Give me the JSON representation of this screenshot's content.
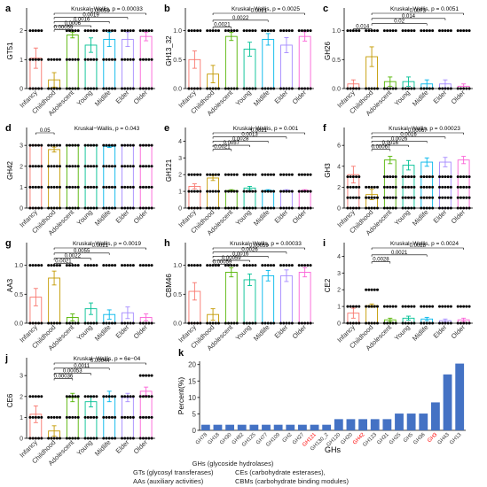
{
  "groups": [
    "Infancy",
    "Childhood",
    "Adolescent",
    "Young",
    "Midlife",
    "Elder",
    "Older"
  ],
  "group_colors": {
    "Infancy": "#f8766d",
    "Childhood": "#c49a00",
    "Adolescent": "#53b400",
    "Young": "#00c094",
    "Midlife": "#00b6eb",
    "Elder": "#a58aff",
    "Older": "#fb61d7"
  },
  "bar_color_k": "#4472c4",
  "highlight_color": "#ff0000",
  "chart_data": [
    {
      "panel": "a",
      "type": "bar",
      "ylabel": "GT51",
      "kruskal": "Kruskal−Wallis, p = 0.00033",
      "ylim": [
        0,
        2.6
      ],
      "yticks": [
        0,
        1,
        2
      ],
      "values": [
        1.05,
        0.3,
        1.85,
        1.5,
        1.7,
        1.7,
        1.8
      ],
      "errors": [
        0.35,
        0.25,
        0.1,
        0.25,
        0.25,
        0.25,
        0.15
      ],
      "pvalues": [
        {
          "label": "0.00059",
          "to": 6
        },
        {
          "label": "0.0019",
          "to": 5
        },
        {
          "label": "0.0016",
          "to": 4
        },
        {
          "label": "0.0006",
          "to": 3
        },
        {
          "label": "0.00059",
          "to": 2
        }
      ]
    },
    {
      "panel": "b",
      "type": "bar",
      "ylabel": "GH13_32",
      "kruskal": "Kruskal−Wallis, p = 0.0025",
      "ylim": [
        0,
        1.3
      ],
      "yticks": [
        0.0,
        0.5,
        1.0
      ],
      "ytick_labels": [
        "0.0",
        "0.5",
        "1.0"
      ],
      "values": [
        0.5,
        0.25,
        0.9,
        0.68,
        0.85,
        0.75,
        0.9
      ],
      "errors": [
        0.15,
        0.15,
        0.07,
        0.12,
        0.1,
        0.13,
        0.08
      ],
      "pvalues": [
        {
          "label": "0.0021",
          "to": 6
        },
        {
          "label": "0.0022",
          "to": 4
        },
        {
          "label": "0.0021",
          "to": 2
        }
      ]
    },
    {
      "panel": "c",
      "type": "bar",
      "ylabel": "GH26",
      "kruskal": "Kruskal−Wallis, p = 0.0051",
      "ylim": [
        0,
        1.3
      ],
      "yticks": [
        0.0,
        0.5,
        1.0
      ],
      "ytick_labels": [
        "0.0",
        "0.5",
        "1.0"
      ],
      "values": [
        0.08,
        0.55,
        0.12,
        0.12,
        0.08,
        0.08,
        0.04
      ],
      "errors": [
        0.07,
        0.17,
        0.08,
        0.08,
        0.07,
        0.07,
        0.04
      ],
      "pvalues": [
        {
          "label": "0.0073",
          "to": 6
        },
        {
          "label": "0.014",
          "to": 5
        },
        {
          "label": "0.02",
          "to": 4
        },
        {
          "label": "0.014",
          "to": 0
        }
      ]
    },
    {
      "panel": "d",
      "type": "bar",
      "ylabel": "GH42",
      "kruskal": "Kruskal−Wallis, p = 0.043",
      "ylim": [
        0,
        3.6
      ],
      "yticks": [
        0,
        1,
        2,
        3
      ],
      "values": [
        3,
        2.8,
        3,
        3,
        2.95,
        3,
        3
      ],
      "errors": [
        0,
        0.12,
        0,
        0,
        0.05,
        0,
        0
      ],
      "pvalues": [
        {
          "label": "0.05",
          "to": 0
        }
      ]
    },
    {
      "panel": "e",
      "type": "bar",
      "ylabel": "GH121",
      "kruskal": "Kruskal−Wallis, p = 0.001",
      "ylim": [
        0,
        4.5
      ],
      "yticks": [
        0,
        1,
        2,
        3,
        4
      ],
      "values": [
        1.3,
        1.8,
        1.05,
        1.2,
        1.05,
        1.05,
        1.05
      ],
      "errors": [
        0.15,
        0.15,
        0.05,
        0.1,
        0.05,
        0.05,
        0.05
      ],
      "pvalues": [
        {
          "label": "0.0021",
          "to": 6
        },
        {
          "label": "0.0013",
          "to": 5
        },
        {
          "label": "0.0028",
          "to": 4
        },
        {
          "label": "0.0057",
          "to": 3
        },
        {
          "label": "0.0021",
          "to": 2
        }
      ]
    },
    {
      "panel": "f",
      "type": "bar",
      "ylabel": "GH3",
      "kruskal": "Kruskal−Wallis, p = 0.00023",
      "ylim": [
        0,
        7.2
      ],
      "yticks": [
        0,
        2,
        4,
        6
      ],
      "values": [
        3.2,
        1.3,
        4.6,
        4.1,
        4.4,
        4.4,
        4.6
      ],
      "errors": [
        0.8,
        0.5,
        0.35,
        0.45,
        0.4,
        0.45,
        0.35
      ],
      "pvalues": [
        {
          "label": "0.00067",
          "to": 6
        },
        {
          "label": "0.0016",
          "to": 5
        },
        {
          "label": "0.0026",
          "to": 4
        },
        {
          "label": "0.0016",
          "to": 3
        },
        {
          "label": "0.00067",
          "to": 2
        }
      ]
    },
    {
      "panel": "g",
      "type": "bar",
      "ylabel": "AA3",
      "kruskal": "Kruskal−Wallis, p = 0.0019",
      "ylim": [
        0,
        1.3
      ],
      "yticks": [
        0.0,
        0.5,
        1.0
      ],
      "ytick_labels": [
        "0.0",
        "0.5",
        "1.0"
      ],
      "values": [
        0.45,
        0.78,
        0.1,
        0.25,
        0.15,
        0.18,
        0.1
      ],
      "errors": [
        0.15,
        0.12,
        0.06,
        0.1,
        0.08,
        0.1,
        0.06
      ],
      "pvalues": [
        {
          "label": "0.0021",
          "to": 6
        },
        {
          "label": "0.0055",
          "to": 4
        },
        {
          "label": "0.0022",
          "to": 3
        },
        {
          "label": "0.0021",
          "to": 2
        }
      ]
    },
    {
      "panel": "h",
      "type": "bar",
      "ylabel": "CBM46",
      "kruskal": "Kruskal−Wallis, p = 0.00033",
      "ylim": [
        0,
        1.3
      ],
      "yticks": [
        0.0,
        0.5,
        1.0
      ],
      "ytick_labels": [
        "0.0",
        "0.5",
        "1.0"
      ],
      "values": [
        0.55,
        0.15,
        0.88,
        0.75,
        0.82,
        0.82,
        0.88
      ],
      "errors": [
        0.15,
        0.1,
        0.08,
        0.1,
        0.09,
        0.1,
        0.08
      ],
      "pvalues": [
        {
          "label": "0.00059",
          "to": 6
        },
        {
          "label": "0.0026",
          "to": 5
        },
        {
          "label": "0.0016",
          "to": 4
        },
        {
          "label": "0.00059",
          "to": 3
        },
        {
          "label": "0.00059",
          "to": 2
        }
      ]
    },
    {
      "panel": "i",
      "type": "bar",
      "ylabel": "CE2",
      "kruskal": "Kruskal−Wallis, p = 0.0024",
      "ylim": [
        0,
        4.5
      ],
      "yticks": [
        0,
        1,
        2,
        3,
        4
      ],
      "values": [
        0.6,
        1.05,
        0.2,
        0.3,
        0.25,
        0.15,
        0.2
      ],
      "errors": [
        0.3,
        0.1,
        0.1,
        0.12,
        0.1,
        0.1,
        0.1
      ],
      "pvalues": [
        {
          "label": "0.0028",
          "to": 6
        },
        {
          "label": "0.0021",
          "to": 4
        },
        {
          "label": "0.0028",
          "to": 2
        }
      ]
    },
    {
      "panel": "j",
      "type": "bar",
      "ylabel": "CE6",
      "kruskal": "Kruskal−Wallis, p = 6e−04",
      "ylim": [
        0,
        3.6
      ],
      "yticks": [
        0,
        1,
        2,
        3
      ],
      "values": [
        1.15,
        0.35,
        1.95,
        1.75,
        2.0,
        1.95,
        2.25
      ],
      "errors": [
        0.4,
        0.25,
        0.2,
        0.25,
        0.25,
        0.2,
        0.2
      ],
      "pvalues": [
        {
          "label": "0.00044",
          "to": 6
        },
        {
          "label": "0.0011",
          "to": 4
        },
        {
          "label": "0.00053",
          "to": 3
        },
        {
          "label": "0.00036",
          "to": 2
        }
      ]
    },
    {
      "panel": "k",
      "type": "bar",
      "ylabel": "Percent(%)",
      "xlabel": "GHs",
      "ylim": [
        0,
        21
      ],
      "yticks": [
        0,
        5,
        10,
        15,
        20
      ],
      "categories": [
        "GH78",
        "GH18",
        "GH30",
        "GH92",
        "GH125",
        "GH77",
        "GH109",
        "GH2",
        "GH27",
        "GH121",
        "GH130_2",
        "GH120",
        "GH20",
        "GH42",
        "GH123",
        "GH31",
        "GH25",
        "GH5",
        "GH36",
        "GH3",
        "GH43",
        "GH13"
      ],
      "values": [
        1.7,
        1.7,
        1.7,
        1.7,
        1.7,
        1.7,
        1.7,
        1.7,
        1.7,
        1.7,
        1.7,
        3.4,
        3.4,
        3.4,
        3.4,
        3.4,
        5.1,
        5.1,
        5.1,
        8.5,
        17,
        20.3
      ],
      "highlighted": [
        "GH121",
        "GH42",
        "GH3"
      ]
    }
  ],
  "legend": {
    "line1": "GHs (glycoside hydrolases)",
    "line2a": "GTs (glycosyl transferases)",
    "line2b": "CEs (carbohydrate esterases),",
    "line3a": "AAs (auxiliary activities)",
    "line3b": "CBMs (carbohydrate binding modules)"
  }
}
